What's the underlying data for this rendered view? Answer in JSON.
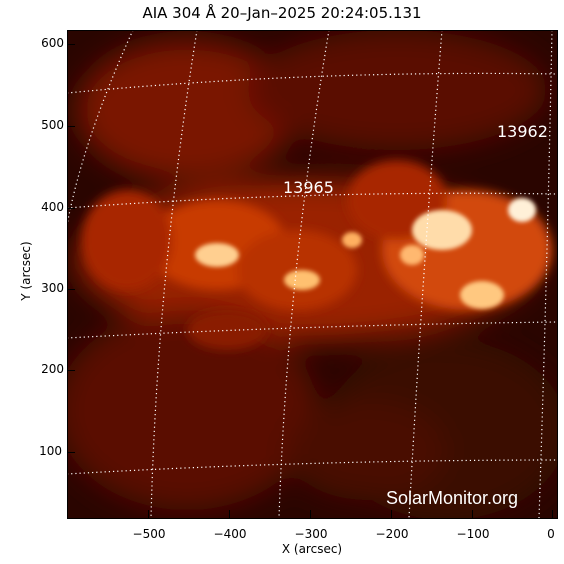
{
  "title": "AIA 304 Å 20–Jan–2025 20:24:05.131",
  "axes": {
    "x_title": "X (arcsec)",
    "y_title": "Y (arcsec)",
    "x_ticks": [
      "−500",
      "−400",
      "−300",
      "−200",
      "−100",
      "0"
    ],
    "y_ticks": [
      "600",
      "500",
      "400",
      "300",
      "200",
      "100"
    ]
  },
  "regions": [
    "13962",
    "13965"
  ],
  "watermark": "SolarMonitor.org",
  "colors": {
    "background": "#140200",
    "grid": "#ffffff",
    "bright": "#ffe4c0",
    "mid": "#c83a05",
    "low": "#5a0d00"
  }
}
